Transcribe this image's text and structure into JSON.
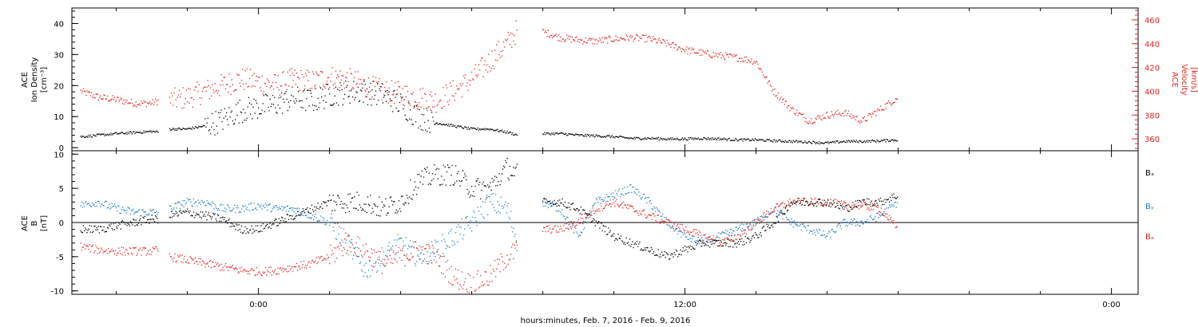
{
  "chart_data": [
    {
      "type": "scatter",
      "panel": "top",
      "xlabel": "hours:minutes, Feb.  7, 2016 - Feb.  9, 2016",
      "x_ticks": [
        "0:00",
        "12:00",
        "0:00"
      ],
      "x_range_hours": [
        -5.25,
        24.75
      ],
      "grid": false,
      "left_axis": {
        "label_lines": [
          "ACE",
          "Ion Density",
          "[cm⁻³]"
        ],
        "ylim": [
          -1,
          45
        ],
        "ticks": [
          0,
          10,
          20,
          30,
          40
        ],
        "color": "#000000"
      },
      "right_axis": {
        "label_lines": [
          "ACE",
          "Velocity",
          "[km/s]"
        ],
        "ylim": [
          350,
          470
        ],
        "ticks": [
          360,
          380,
          400,
          420,
          440,
          460
        ],
        "color": "#e8231c"
      },
      "series": [
        {
          "axis": "left",
          "color": "#000000",
          "x": [
            -5.0,
            -4.0,
            -3.0,
            -2.8,
            -2.5,
            -2.0,
            -1.5,
            -1.0,
            -0.5,
            0.0,
            0.5,
            1.0,
            1.5,
            2.0,
            2.5,
            3.0,
            3.5,
            4.0,
            4.5,
            5.0,
            5.5,
            6.0,
            6.5,
            7.0,
            7.3,
            8.0,
            8.5,
            9.0,
            9.5,
            10.0,
            10.5,
            11.0,
            11.5,
            12.0,
            12.5,
            13.0,
            13.5,
            14.0,
            14.5,
            15.0,
            15.5,
            16.0,
            16.5,
            17.0,
            17.5,
            18.0
          ],
          "y": [
            3.5,
            4.5,
            5.2,
            5.0,
            6,
            6,
            7,
            9,
            12,
            13,
            14,
            16,
            15,
            17,
            18,
            18,
            17,
            14,
            10,
            8,
            7,
            6,
            6,
            5,
            4,
            4.5,
            4.5,
            4.0,
            3.8,
            3.5,
            3.0,
            3.0,
            2.8,
            2.8,
            3.0,
            2.8,
            2.5,
            2.5,
            2.2,
            2.0,
            1.8,
            1.5,
            2.0,
            2.0,
            2.2,
            2.5
          ]
        },
        {
          "axis": "right",
          "color": "#e8231c",
          "x": [
            -5.0,
            -4.5,
            -4.0,
            -3.5,
            -3.0,
            -2.8,
            -2.5,
            -2.0,
            -1.5,
            -1.0,
            -0.5,
            0.0,
            0.5,
            1.0,
            1.5,
            2.0,
            2.5,
            3.0,
            3.5,
            4.0,
            4.5,
            5.0,
            5.5,
            6.0,
            6.5,
            7.0,
            7.3,
            8.0,
            8.5,
            9.0,
            9.5,
            10.0,
            10.5,
            11.0,
            11.5,
            12.0,
            12.5,
            13.0,
            13.5,
            14.0,
            14.5,
            15.0,
            15.5,
            16.0,
            16.5,
            17.0,
            17.5,
            18.0
          ],
          "y": [
            400,
            395,
            393,
            390,
            390,
            392,
            392,
            395,
            400,
            405,
            410,
            408,
            405,
            410,
            408,
            412,
            410,
            405,
            400,
            398,
            395,
            392,
            400,
            410,
            425,
            440,
            452,
            450,
            445,
            443,
            442,
            444,
            445,
            444,
            440,
            435,
            432,
            430,
            428,
            425,
            400,
            385,
            375,
            380,
            382,
            375,
            385,
            395
          ]
        }
      ]
    },
    {
      "type": "scatter",
      "panel": "bottom",
      "xlabel": "hours:minutes, Feb.  7, 2016 - Feb.  9, 2016",
      "x_range_hours": [
        -5.25,
        24.75
      ],
      "grid": false,
      "left_axis": {
        "label_lines": [
          "ACE",
          "B",
          "[nT]"
        ],
        "ylim": [
          -10.5,
          10.5
        ],
        "ticks": [
          -10,
          -5,
          0,
          5,
          10
        ],
        "color": "#000000"
      },
      "zero_line": true,
      "legend_position": "right",
      "series": [
        {
          "name": "Bₓ",
          "color": "#000000",
          "x": [
            -5.0,
            -4.5,
            -4.0,
            -3.5,
            -3.0,
            -2.8,
            -2.5,
            -2.0,
            -1.5,
            -1.0,
            -0.5,
            0.0,
            0.5,
            1.0,
            1.5,
            2.0,
            2.5,
            3.0,
            3.5,
            4.0,
            4.5,
            5.0,
            5.5,
            6.0,
            6.5,
            7.0,
            7.3,
            8.0,
            8.5,
            9.0,
            9.5,
            10.0,
            10.5,
            11.0,
            11.5,
            12.0,
            12.5,
            13.0,
            13.5,
            14.0,
            14.5,
            15.0,
            15.5,
            16.0,
            16.5,
            17.0,
            17.5,
            18.0
          ],
          "y": [
            -1,
            -1,
            -0.5,
            0,
            0.5,
            0.5,
            1,
            1.5,
            1,
            0.5,
            -1,
            -1,
            0,
            1,
            2,
            3,
            3,
            3,
            2,
            3,
            6,
            7,
            7,
            5,
            5,
            8,
            7,
            3,
            3,
            2,
            0,
            -2,
            -3,
            -4,
            -5,
            -4,
            -3,
            -3,
            -3,
            -2,
            0,
            3,
            3,
            3,
            2,
            3,
            3,
            4
          ]
        },
        {
          "name": "Bᵧ",
          "color": "#1e7fd0",
          "x": [
            -5.0,
            -4.5,
            -4.0,
            -3.5,
            -3.0,
            -2.8,
            -2.5,
            -2.0,
            -1.5,
            -1.0,
            -0.5,
            0.0,
            0.5,
            1.0,
            1.5,
            2.0,
            2.5,
            3.0,
            3.5,
            4.0,
            4.5,
            5.0,
            5.5,
            6.0,
            6.5,
            7.0,
            7.3,
            8.0,
            8.5,
            9.0,
            9.5,
            10.0,
            10.5,
            11.0,
            11.5,
            12.0,
            12.5,
            13.0,
            13.5,
            14.0,
            14.5,
            15.0,
            15.5,
            16.0,
            16.5,
            17.0,
            17.5,
            18.0
          ],
          "y": [
            2.5,
            3,
            2,
            1.5,
            1.5,
            1.5,
            2,
            3,
            3,
            2,
            2,
            2.5,
            2,
            2,
            1,
            0,
            -3,
            -7,
            -5,
            -3,
            -5,
            -4,
            -2,
            0,
            3,
            2,
            -3,
            3,
            2,
            -2,
            3,
            4,
            5,
            3,
            0,
            -2,
            -3,
            -2,
            -1,
            0,
            2,
            0,
            -1,
            -2,
            0,
            0,
            1,
            3
          ]
        },
        {
          "name": "Bₔ",
          "color": "#e8231c",
          "x": [
            -5.0,
            -4.5,
            -4.0,
            -3.5,
            -3.0,
            -2.8,
            -2.5,
            -2.0,
            -1.5,
            -1.0,
            -0.5,
            0.0,
            0.5,
            1.0,
            1.5,
            2.0,
            2.5,
            3.0,
            3.5,
            4.0,
            4.5,
            5.0,
            5.5,
            6.0,
            6.5,
            7.0,
            7.3,
            8.0,
            8.5,
            9.0,
            9.5,
            10.0,
            10.5,
            11.0,
            11.5,
            12.0,
            12.5,
            13.0,
            13.5,
            14.0,
            14.5,
            15.0,
            15.5,
            16.0,
            16.5,
            17.0,
            17.5,
            18.0
          ],
          "y": [
            -3.5,
            -4,
            -4.2,
            -4.2,
            -4.2,
            -4.0,
            -5,
            -5.5,
            -6,
            -6.5,
            -7,
            -7.2,
            -7,
            -6.5,
            -6,
            -5,
            -3,
            -4,
            -6,
            -5,
            -4,
            -5,
            -8,
            -9,
            -8,
            -5,
            -4,
            -1,
            -1,
            0,
            2,
            3,
            2,
            1,
            0,
            -1,
            -2,
            -3,
            -2,
            0,
            2,
            3,
            3,
            3,
            2.5,
            2.5,
            2,
            -1
          ]
        }
      ]
    }
  ]
}
